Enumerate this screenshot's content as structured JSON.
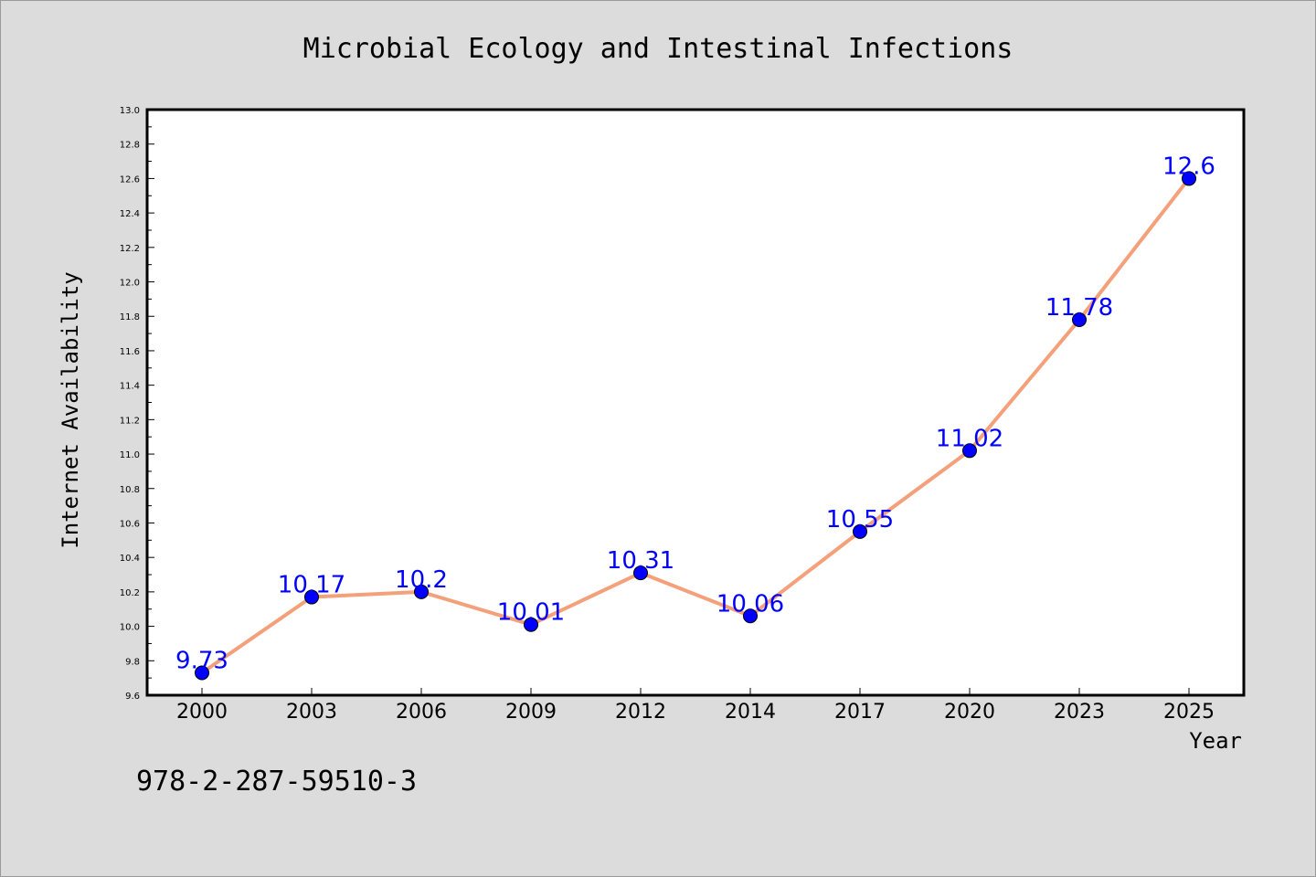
{
  "chart_data": {
    "type": "line",
    "title": "Microbial Ecology and Intestinal Infections",
    "xlabel": "Year",
    "ylabel": "Internet Availability",
    "categories": [
      "2000",
      "2003",
      "2006",
      "2009",
      "2012",
      "2014",
      "2017",
      "2020",
      "2023",
      "2025"
    ],
    "values": [
      9.73,
      10.17,
      10.2,
      10.01,
      10.31,
      10.06,
      10.55,
      11.02,
      11.78,
      12.6
    ],
    "data_labels": [
      "9.73",
      "10.17",
      "10.2",
      "10.01",
      "10.31",
      "10.06",
      "10.55",
      "11.02",
      "11.78",
      "12.6"
    ],
    "ylim": [
      9.6,
      13.0
    ],
    "yticks": [
      "9.6",
      "9.8",
      "10.0",
      "10.2",
      "10.4",
      "10.6",
      "10.8",
      "11.0",
      "11.2",
      "11.4",
      "11.6",
      "11.8",
      "12.0",
      "12.2",
      "12.4",
      "12.6",
      "12.8",
      "13.0"
    ],
    "grid": false,
    "legend": "none",
    "colors": {
      "line": "#f4a07a",
      "marker": "#0000ff",
      "label": "#0000ff",
      "plot_bg": "#ffffff",
      "figure_bg": "#dcdcdc"
    }
  },
  "footnote": "978-2-287-59510-3"
}
